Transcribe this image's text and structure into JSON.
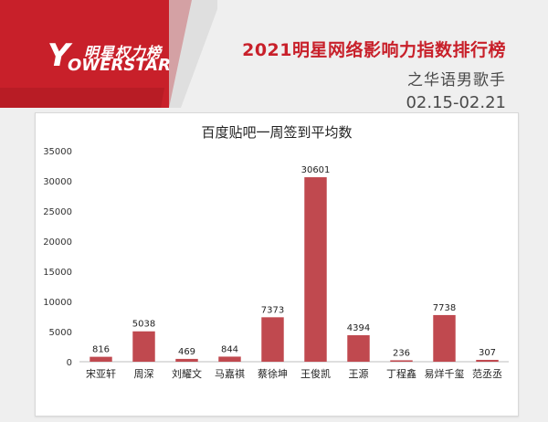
{
  "header": {
    "logo_cn": "明星权力榜",
    "logo_letter": "Y",
    "logo_en": "OWERSTAR",
    "title": "2021明星网络影响力指数排行榜",
    "subtitle": "之华语男歌手",
    "date_range": "02.15-02.21"
  },
  "colors": {
    "brand_red": "#c8202a",
    "bar_fill": "#c0494f"
  },
  "chart_data": {
    "type": "bar",
    "title": "百度贴吧一周签到平均数",
    "categories": [
      "宋亚轩",
      "周深",
      "刘耀文",
      "马嘉祺",
      "蔡徐坤",
      "王俊凯",
      "王源",
      "丁程鑫",
      "易烊千玺",
      "范丞丞"
    ],
    "values": [
      816,
      5038,
      469,
      844,
      7373,
      30601,
      4394,
      236,
      7738,
      307
    ],
    "yticks": [
      "0",
      "5000",
      "10000",
      "15000",
      "20000",
      "25000",
      "30000",
      "35000"
    ],
    "ylim": [
      0,
      35000
    ],
    "grid": false,
    "legend": "none"
  }
}
